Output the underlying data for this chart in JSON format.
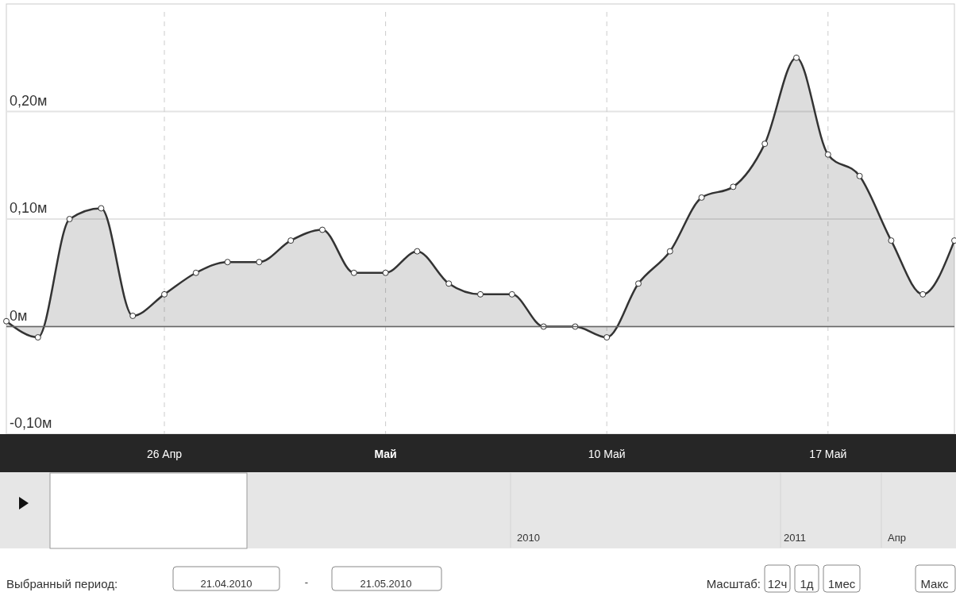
{
  "chart_data": {
    "type": "area",
    "x": [
      "2010-04-21",
      "2010-04-22",
      "2010-04-23",
      "2010-04-24",
      "2010-04-25",
      "2010-04-26",
      "2010-04-27",
      "2010-04-28",
      "2010-04-29",
      "2010-04-30",
      "2010-05-01",
      "2010-05-02",
      "2010-05-03",
      "2010-05-04",
      "2010-05-05",
      "2010-05-06",
      "2010-05-07",
      "2010-05-08",
      "2010-05-09",
      "2010-05-10",
      "2010-05-11",
      "2010-05-12",
      "2010-05-13",
      "2010-05-14",
      "2010-05-15",
      "2010-05-16",
      "2010-05-17",
      "2010-05-18",
      "2010-05-19",
      "2010-05-20",
      "2010-05-21"
    ],
    "series": [
      {
        "color": "#333333",
        "values": [
          0.005,
          -0.01,
          0.1,
          0.11,
          0.01,
          0.03,
          0.05,
          0.06,
          0.06,
          0.08,
          0.09,
          0.05,
          0.05,
          0.07,
          0.04,
          0.03,
          0.03,
          0.0,
          0.0,
          -0.01,
          0.04,
          0.07,
          0.12,
          0.13,
          0.17,
          0.25,
          0.16,
          0.14,
          0.08,
          0.03,
          0.08
        ]
      }
    ],
    "xlim": [
      "2010-04-21",
      "2010-05-21"
    ],
    "xticks": [
      {
        "value": "2010-04-26",
        "label": "26 Апр"
      },
      {
        "value": "2010-05-03",
        "label": "Май"
      },
      {
        "value": "2010-05-10",
        "label": "10 Май"
      },
      {
        "value": "2010-05-17",
        "label": "17 Май"
      }
    ],
    "ylim": [
      -0.1,
      0.3
    ],
    "yticks": [
      {
        "value": -0.1,
        "label": "-0,10м"
      },
      {
        "value": 0,
        "label": "0м"
      },
      {
        "value": 0.1,
        "label": "0,10м"
      },
      {
        "value": 0.2,
        "label": "0,20м"
      }
    ],
    "grid": true,
    "marker": "circle",
    "annotations": [
      "2010",
      "2011",
      "Апр",
      "Выбранный период:",
      "21.04.2010",
      "-",
      "21.05.2010",
      "Масштаб:",
      "12ч",
      "1д",
      "1мес",
      "Макс"
    ]
  }
}
